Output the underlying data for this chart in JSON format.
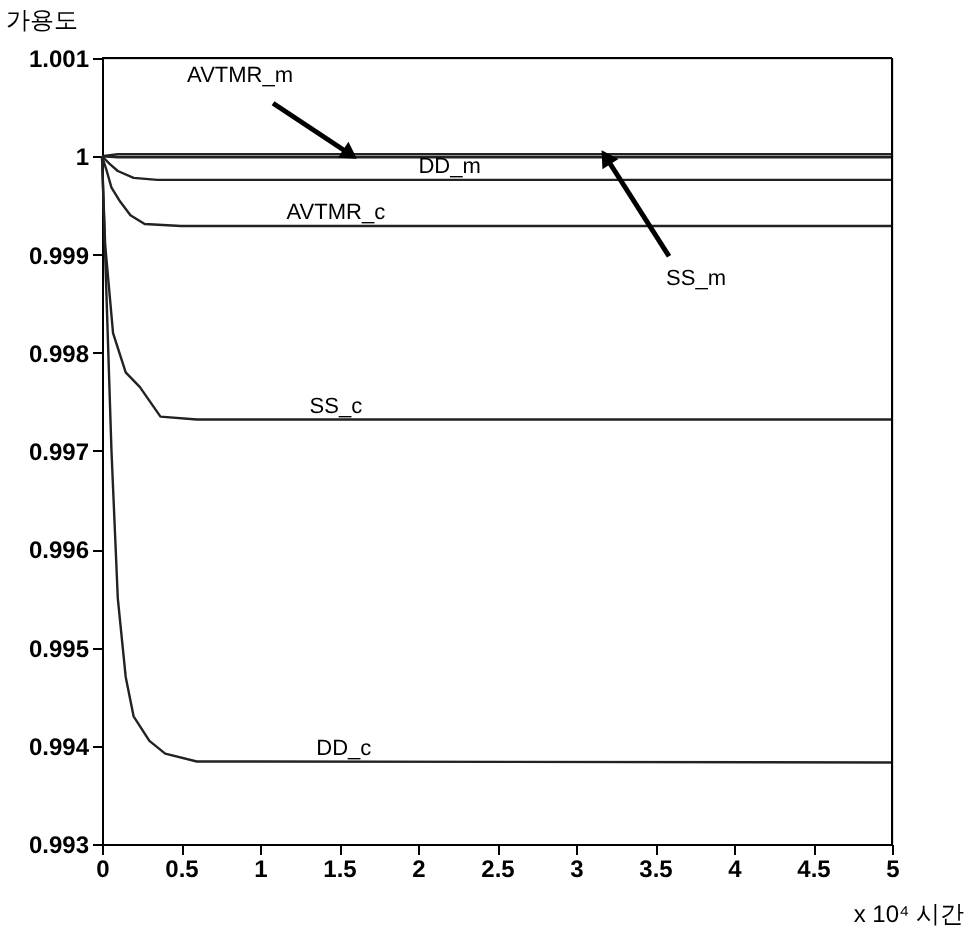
{
  "chart_data": {
    "type": "line",
    "xlabel": "x 10⁴  시간",
    "ylabel": "가용도",
    "xlim": [
      0,
      5
    ],
    "xticks": [
      0,
      0.5,
      1,
      1.5,
      2,
      2.5,
      3,
      3.5,
      4,
      4.5,
      5
    ],
    "ylim": [
      0.993,
      1.001
    ],
    "yticks": [
      0.993,
      0.994,
      0.995,
      0.996,
      0.997,
      0.998,
      0.999,
      1,
      1.001
    ],
    "grid": false,
    "line_style": "solid",
    "marker": "none",
    "series": [
      {
        "color": "#222222",
        "x": [
          0,
          0.1,
          5
        ],
        "values": [
          1,
          1.00002,
          1.00002
        ]
      },
      {
        "color": "#222222",
        "x": [
          0,
          0.1,
          5
        ],
        "values": [
          1,
          0.99999,
          0.99999
        ]
      },
      {
        "color": "#222222",
        "x": [
          0,
          0.05,
          0.1,
          0.2,
          0.35,
          5
        ],
        "values": [
          1,
          0.99992,
          0.99985,
          0.99978,
          0.99976,
          0.99976
        ]
      },
      {
        "color": "#222222",
        "x": [
          0,
          0.03,
          0.06,
          0.11,
          0.18,
          0.27,
          0.5,
          5
        ],
        "values": [
          1,
          0.99985,
          0.99968,
          0.99955,
          0.9994,
          0.99931,
          0.99929,
          0.99929
        ]
      },
      {
        "color": "#222222",
        "x": [
          0,
          0.02,
          0.07,
          0.15,
          0.24,
          0.37,
          0.6,
          5
        ],
        "values": [
          1,
          0.9991,
          0.9982,
          0.9978,
          0.99765,
          0.99735,
          0.99732,
          0.99732
        ]
      },
      {
        "color": "#222222",
        "x": [
          0,
          0.03,
          0.06,
          0.1,
          0.15,
          0.2,
          0.3,
          0.4,
          0.6,
          5
        ],
        "values": [
          1,
          0.9985,
          0.997,
          0.9955,
          0.9947,
          0.9943,
          0.99405,
          0.99392,
          0.99384,
          0.99383
        ]
      }
    ],
    "annotations": [
      {
        "text": "AVTMR_m",
        "x": 1.57,
        "y": 1.00002
      },
      {
        "text": "SS_m",
        "x": 3.19,
        "y": 0.99999
      },
      {
        "text": "DD_m",
        "x": 2.2,
        "y": 0.99976
      },
      {
        "text": "AVTMR_c",
        "x": 1.48,
        "y": 0.99929
      },
      {
        "text": "SS_c",
        "x": 1.48,
        "y": 0.99732
      },
      {
        "text": "DD_c",
        "x": 1.53,
        "y": 0.99383
      }
    ]
  }
}
